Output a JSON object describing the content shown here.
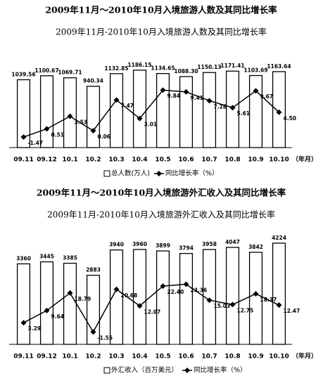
{
  "chart_data": [
    {
      "type": "bar",
      "heading": "2009年11月～2010年10月入境旅游人数及其同比增长率",
      "title": "2009年11月-2010年10月入境旅游人数及其同比增长率",
      "x_unit_label": "（年月）",
      "categories": [
        "09.11",
        "09.12",
        "10.1",
        "10.2",
        "10.3",
        "10.4",
        "10.5",
        "10.6",
        "10.7",
        "10.8",
        "10.9",
        "10.10"
      ],
      "series": [
        {
          "name": "总人数(万人)",
          "color": "#000000",
          "type": "bar",
          "values": [
            1039.56,
            1100.67,
            1069.71,
            940.34,
            1132.85,
            1186.15,
            1134.65,
            1088.3,
            1150.13,
            1171.41,
            1103.69,
            1163.64
          ],
          "value_labels": [
            "1039.56",
            "1100.67",
            "1069.71",
            "940.34",
            "1132.85",
            "1186.15",
            "1134.65",
            "1088.30",
            "1150.13",
            "1171.41",
            "1103.69",
            "1163.64"
          ]
        },
        {
          "name": "同比增长率（%）",
          "color": "#000000",
          "type": "line",
          "axis": "y2",
          "values": [
            -1.47,
            0.51,
            3.53,
            0.06,
            7.47,
            3.01,
            9.84,
            9.41,
            7.28,
            5.61,
            9.67,
            4.5
          ],
          "value_labels": [
            "-1.47",
            "0.51",
            "3.53",
            "0.06",
            "7.47",
            "3.01",
            "9.84",
            "9.41",
            "7.28",
            "5.61",
            "9.67",
            "4.50"
          ]
        }
      ],
      "ylim": [
        0,
        1400
      ],
      "y2lim": [
        -4,
        18
      ]
    },
    {
      "type": "bar",
      "heading": "2009年11月～2010年10月入境旅游外汇收入及其同比增长率",
      "title": "2009年11月-2010年10月入境旅游外汇收入及其同比增长率",
      "x_unit_label": "（年月）",
      "categories": [
        "09.11",
        "09.12",
        "10.1",
        "10.2",
        "10.3",
        "10.4",
        "10.5",
        "10.6",
        "10.7",
        "10.8",
        "10.9",
        "10.10"
      ],
      "series": [
        {
          "name": "外汇收入（百万美元）",
          "color": "#000000",
          "type": "bar",
          "values": [
            3360,
            3445,
            3385,
            2883,
            3940,
            3960,
            3899,
            3794,
            3958,
            4047,
            3842,
            4224
          ]
        },
        {
          "name": "同比增长率（%）",
          "color": "#000000",
          "type": "line",
          "axis": "y2",
          "values": [
            3.29,
            9.64,
            18.79,
            -1.55,
            20.68,
            12.07,
            22.4,
            23.36,
            15.03,
            12.75,
            18.37,
            12.47
          ],
          "value_labels": [
            "3.29",
            "9.64",
            "18.79",
            "-1.55",
            "20.68",
            "12.07",
            "22.40",
            "23.36",
            "15.03",
            "12.75",
            "18.37",
            "12.47"
          ]
        }
      ],
      "ylim": [
        0,
        4400
      ],
      "y2lim": [
        -8,
        47
      ]
    }
  ]
}
